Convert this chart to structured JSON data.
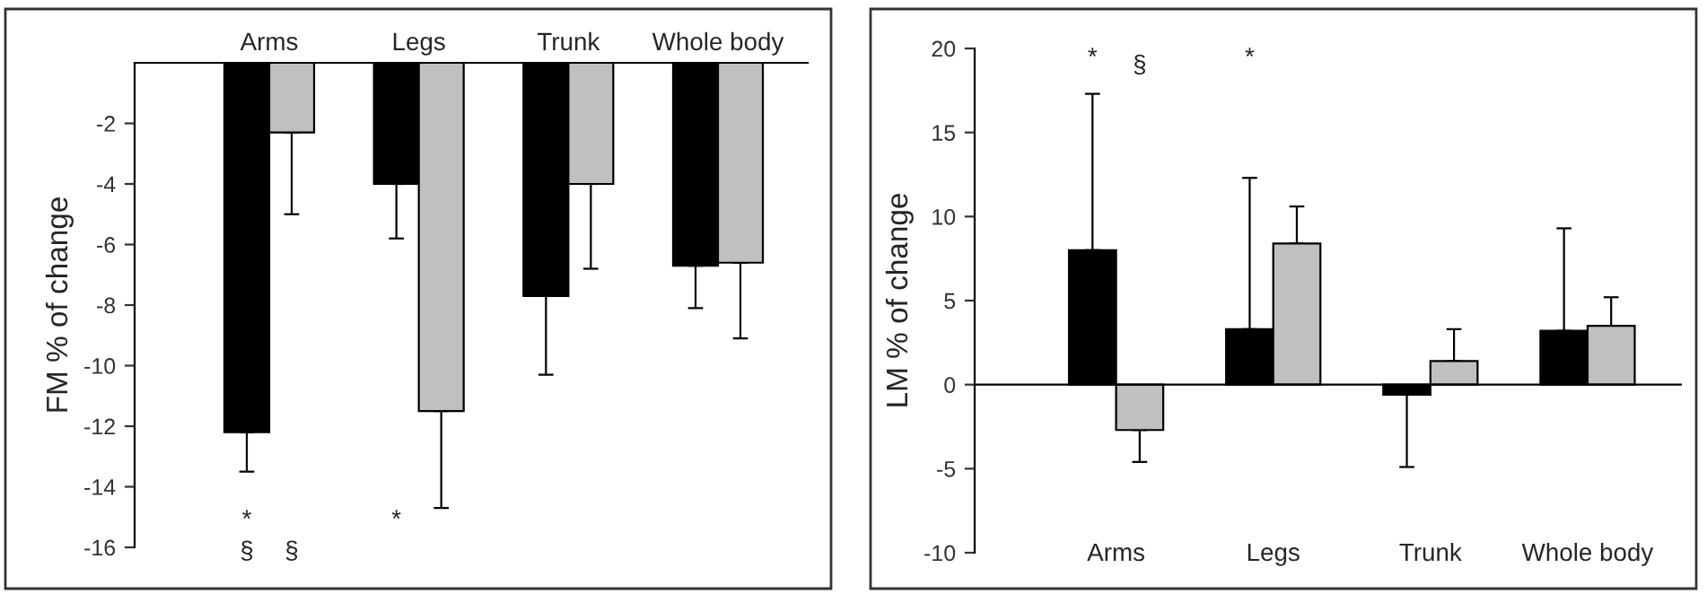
{
  "chart_data": [
    {
      "type": "bar",
      "ylabel": "FM % of change",
      "categories": [
        "Arms",
        "Legs",
        "Trunk",
        "Whole body"
      ],
      "series": [
        {
          "color": "#000000",
          "values": [
            -12.2,
            -4.0,
            -7.7,
            -6.7
          ],
          "errors": [
            [
              -13.5,
              -12.2
            ],
            [
              -5.8,
              -4.0
            ],
            [
              -10.3,
              -7.7
            ],
            [
              -8.1,
              -6.7
            ]
          ]
        },
        {
          "color": "#c0c0c0",
          "values": [
            -2.3,
            -11.5,
            -4.0,
            -6.6
          ],
          "errors": [
            [
              -5.0,
              -2.3
            ],
            [
              -14.7,
              -11.5
            ],
            [
              -6.8,
              -4.0
            ],
            [
              -9.1,
              -6.6
            ]
          ]
        }
      ],
      "ylim": [
        -16,
        0
      ],
      "yticks": [
        -2,
        -4,
        -6,
        -8,
        -10,
        -12,
        -14,
        -16
      ],
      "grid": false,
      "legend": false,
      "annotations": [
        "*",
        "§",
        "§",
        "*"
      ]
    },
    {
      "type": "bar",
      "ylabel": "LM % of change",
      "categories": [
        "Arms",
        "Legs",
        "Trunk",
        "Whole body"
      ],
      "series": [
        {
          "color": "#000000",
          "values": [
            8.0,
            3.3,
            -0.6,
            3.2
          ],
          "errors": [
            [
              8.0,
              17.3
            ],
            [
              3.3,
              12.3
            ],
            [
              -4.9,
              -0.6
            ],
            [
              3.2,
              9.3
            ]
          ]
        },
        {
          "color": "#c0c0c0",
          "values": [
            -2.7,
            8.4,
            1.4,
            3.5
          ],
          "errors": [
            [
              -4.6,
              -2.7
            ],
            [
              8.4,
              10.6
            ],
            [
              1.4,
              3.3
            ],
            [
              3.5,
              5.2
            ]
          ]
        }
      ],
      "ylim": [
        -10,
        20
      ],
      "yticks": [
        -10,
        -5,
        0,
        5,
        10,
        15,
        20
      ],
      "grid": false,
      "legend": false,
      "annotations": [
        "*",
        "§",
        "*"
      ],
      "ref_lines": [
        {
          "axis": "y",
          "value": 0,
          "color": "#000000"
        }
      ]
    }
  ]
}
